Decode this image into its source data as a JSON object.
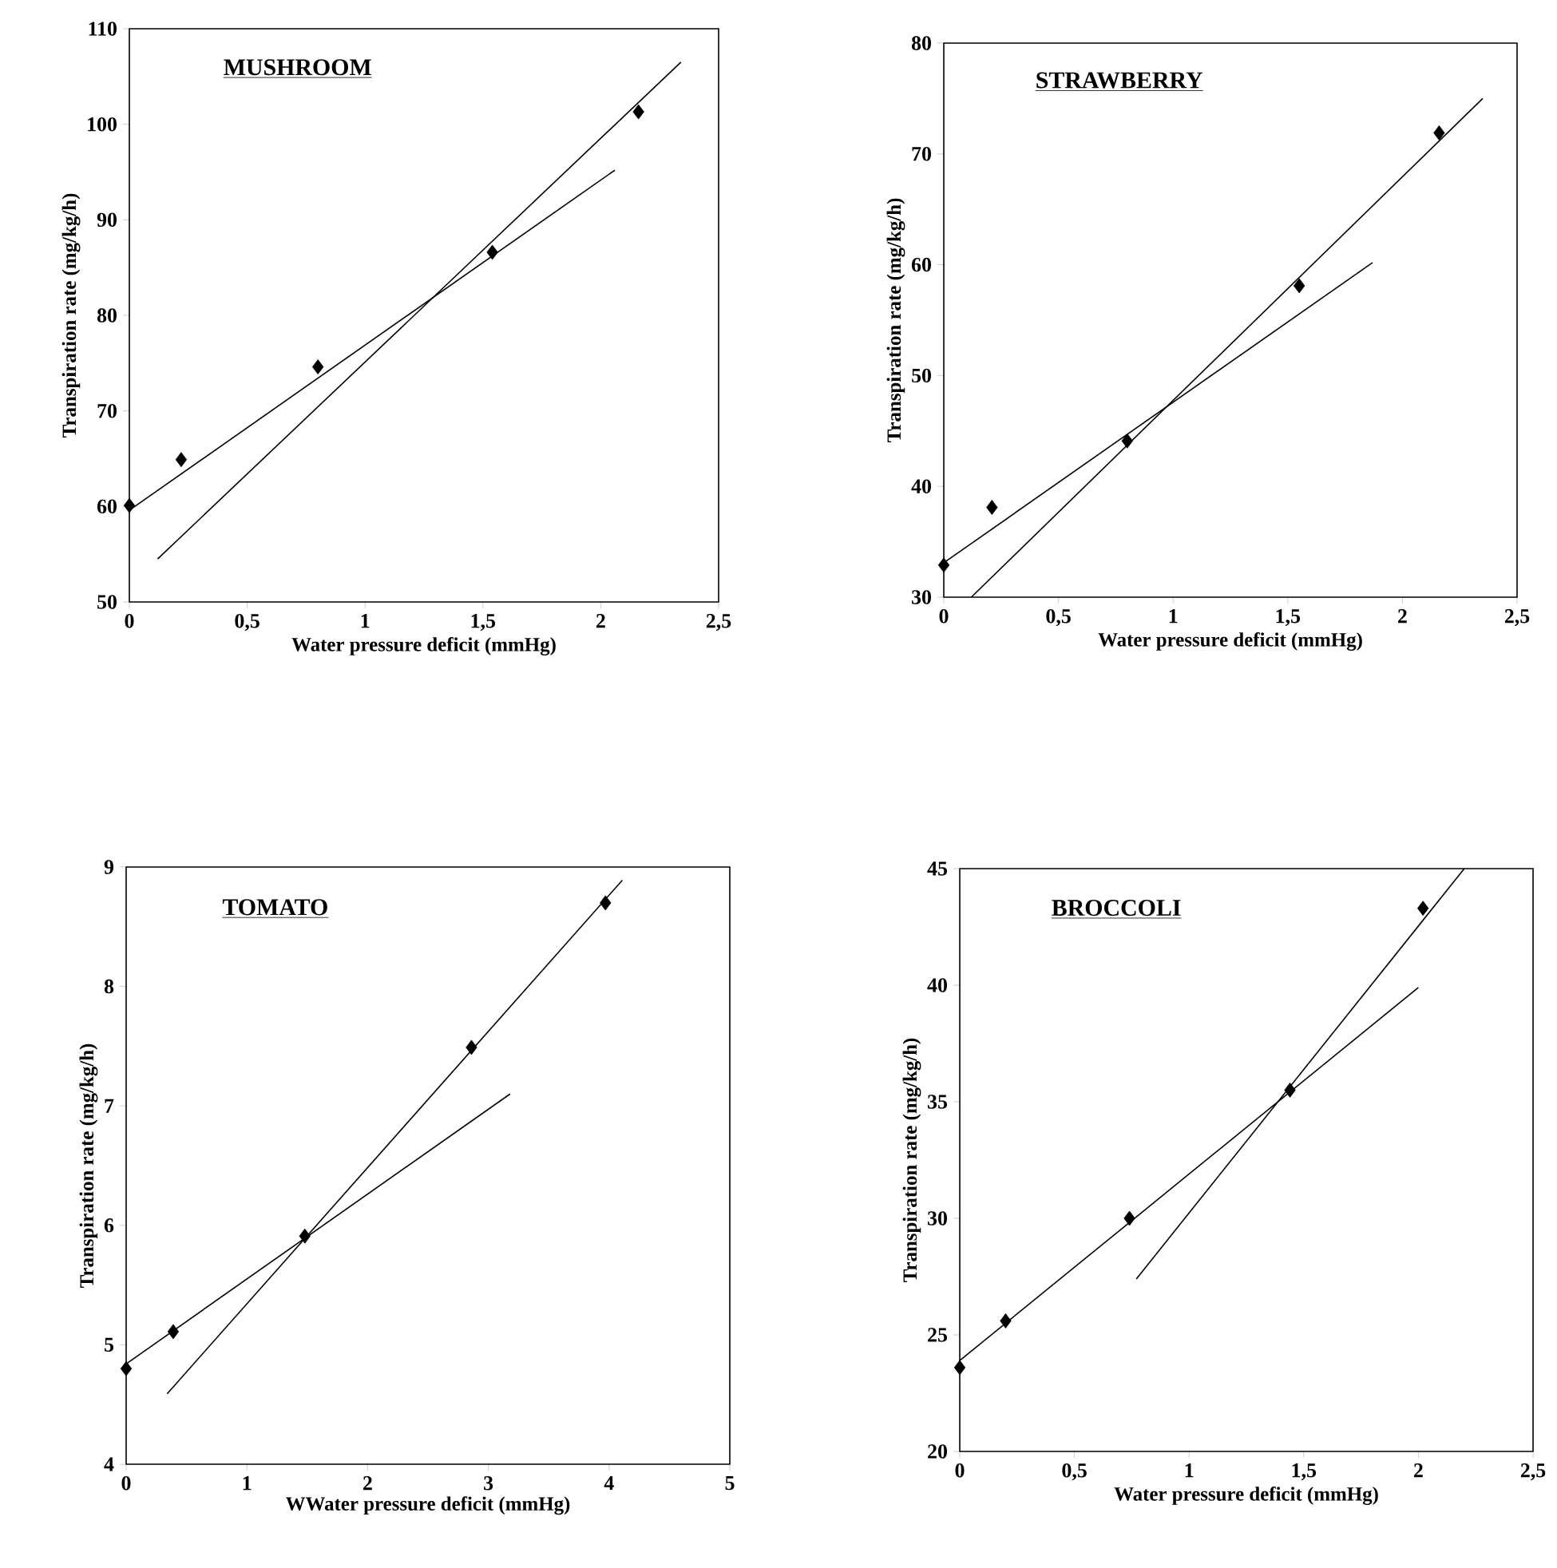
{
  "chart_data": [
    {
      "type": "scatter",
      "title": "MUSHROOM",
      "xlabel": "Water pressure deficit (mmHg)",
      "ylabel": "Transpiration rate (mg/kg/h)",
      "xlim": [
        0,
        2.5
      ],
      "ylim": [
        50,
        110
      ],
      "xticks": [
        0,
        {
          "value": 0.5,
          "label": "0,5"
        },
        1,
        {
          "value": 1.5,
          "label": "1,5"
        },
        2,
        {
          "value": 2.5,
          "label": "2,5"
        }
      ],
      "yticks": [
        50,
        60,
        70,
        80,
        90,
        100,
        110
      ],
      "marker": "diamond",
      "series": [
        {
          "color": "#000000",
          "x": [
            0,
            0.22,
            0.8,
            1.54,
            2.16
          ],
          "values": [
            60.1,
            64.9,
            74.6,
            86.6,
            101.3
          ]
        },
        {
          "type": "line",
          "marker": "none",
          "color": "#000000",
          "x": [
            0,
            2.06
          ],
          "values": [
            59.6,
            95.2
          ]
        },
        {
          "type": "line",
          "marker": "none",
          "color": "#000000",
          "x": [
            0.12,
            2.34
          ],
          "values": [
            54.5,
            106.5
          ]
        }
      ]
    },
    {
      "type": "scatter",
      "title": "STRAWBERRY",
      "xlabel": "Water pressure deficit (mmHg)",
      "ylabel": "Transpiration rate (mg/kg/h)",
      "xlim": [
        0,
        2.5
      ],
      "ylim": [
        30,
        80
      ],
      "xticks": [
        0,
        {
          "value": 0.5,
          "label": "0,5"
        },
        1,
        {
          "value": 1.5,
          "label": "1,5"
        },
        2,
        {
          "value": 2.5,
          "label": "2,5"
        }
      ],
      "yticks": [
        30,
        40,
        50,
        60,
        70,
        80
      ],
      "marker": "diamond",
      "series": [
        {
          "color": "#000000",
          "x": [
            0,
            0.21,
            0.8,
            1.55,
            2.16
          ],
          "values": [
            32.9,
            38.1,
            44.1,
            58.1,
            71.9
          ]
        },
        {
          "type": "line",
          "marker": "none",
          "color": "#000000",
          "x": [
            0,
            1.87
          ],
          "values": [
            33.1,
            60.2
          ]
        },
        {
          "type": "line",
          "marker": "none",
          "color": "#000000",
          "x": [
            0.12,
            2.35
          ],
          "values": [
            30,
            75
          ]
        }
      ]
    },
    {
      "type": "scatter",
      "title": "TOMATO",
      "xlabel": "WWater pressure deficit (mmHg)",
      "ylabel": "Transpiration rate (mg/kg/h)",
      "xlim": [
        0,
        5
      ],
      "ylim": [
        4,
        9
      ],
      "xticks": [
        0,
        1,
        2,
        3,
        4,
        5
      ],
      "yticks": [
        4,
        5,
        6,
        7,
        8,
        9
      ],
      "marker": "diamond",
      "series": [
        {
          "color": "#000000",
          "x": [
            0,
            0.39,
            1.48,
            2.86,
            3.97
          ],
          "values": [
            4.8,
            5.11,
            5.91,
            7.49,
            8.7
          ]
        },
        {
          "type": "line",
          "marker": "none",
          "color": "#000000",
          "x": [
            0,
            3.18
          ],
          "values": [
            4.84,
            7.1
          ]
        },
        {
          "type": "line",
          "marker": "none",
          "color": "#000000",
          "x": [
            0.34,
            4.11
          ],
          "values": [
            4.59,
            8.89
          ]
        }
      ]
    },
    {
      "type": "scatter",
      "title": "BROCCOLI",
      "xlabel": "Water pressure deficit (mmHg)",
      "ylabel": "Transpiration rate (mg/kg/h)",
      "xlim": [
        0,
        2.5
      ],
      "ylim": [
        20,
        45
      ],
      "xticks": [
        0,
        {
          "value": 0.5,
          "label": "0,5"
        },
        1,
        {
          "value": 1.5,
          "label": "1,5"
        },
        2,
        {
          "value": 2.5,
          "label": "2,5"
        }
      ],
      "yticks": [
        20,
        25,
        30,
        35,
        40,
        45
      ],
      "marker": "diamond",
      "series": [
        {
          "color": "#000000",
          "x": [
            0,
            0.2,
            0.74,
            1.44,
            2.02
          ],
          "values": [
            23.6,
            25.6,
            30.0,
            35.5,
            43.3
          ]
        },
        {
          "type": "line",
          "marker": "none",
          "color": "#000000",
          "x": [
            0,
            2.0
          ],
          "values": [
            23.9,
            39.9
          ]
        },
        {
          "type": "line",
          "marker": "none",
          "color": "#000000",
          "x": [
            0.77,
            2.2
          ],
          "values": [
            27.4,
            45
          ]
        }
      ]
    }
  ]
}
